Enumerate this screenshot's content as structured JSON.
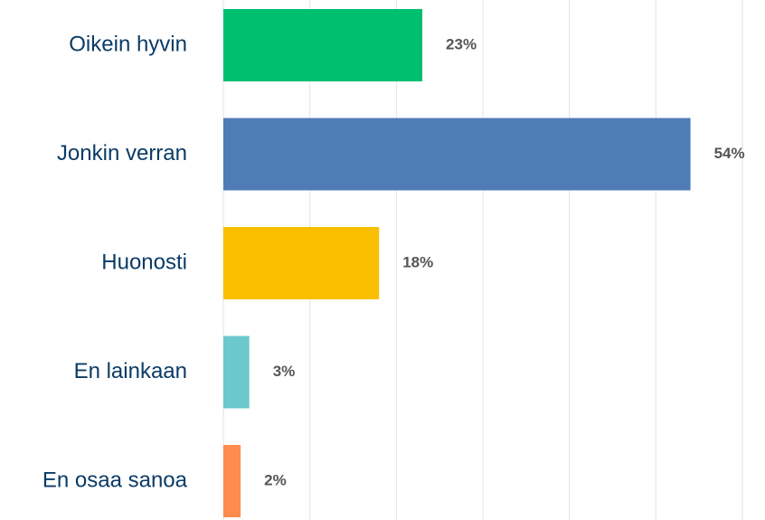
{
  "chart_data": {
    "type": "bar",
    "orientation": "horizontal",
    "categories": [
      "Oikein hyvin",
      "Jonkin verran",
      "Huonosti",
      "En lainkaan",
      "En osaa sanoa"
    ],
    "values": [
      23,
      54,
      18,
      3,
      2
    ],
    "value_labels": [
      "23%",
      "54%",
      "18%",
      "3%",
      "2%"
    ],
    "colors": [
      "#00bf6f",
      "#507cb6",
      "#f9be00",
      "#6bc8cd",
      "#ff8b4f"
    ],
    "xlim": [
      0,
      60
    ],
    "xticks": [
      0,
      10,
      20,
      30,
      40,
      50,
      60
    ],
    "grid": true
  }
}
